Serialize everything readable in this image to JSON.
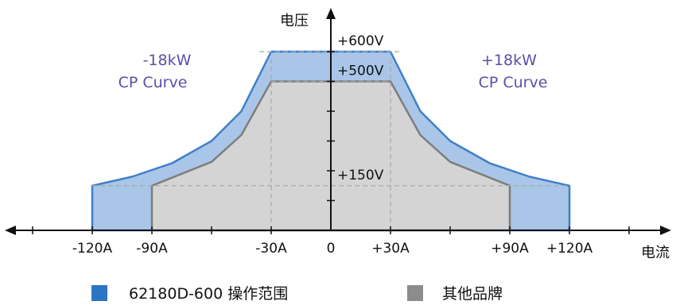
{
  "chart_data": {
    "type": "area",
    "xlabel": "电流",
    "ylabel": "电压",
    "x_ticks": [
      "-120A",
      "-90A",
      "-30A",
      "0",
      "+30A",
      "+90A",
      "+120A"
    ],
    "x_tick_values": [
      -120,
      -90,
      -30,
      0,
      30,
      90,
      120
    ],
    "y_ticks": [
      "+150V",
      "+500V",
      "+600V"
    ],
    "y_tick_values": [
      150,
      500,
      600
    ],
    "xlim": [
      -160,
      160
    ],
    "ylim": [
      0,
      700
    ],
    "annotations": [
      {
        "text_lines": [
          "-18kW",
          "CP Curve"
        ],
        "side": "left"
      },
      {
        "text_lines": [
          "+18kW",
          "CP Curve"
        ],
        "side": "right"
      }
    ],
    "series": [
      {
        "name": "62180D-600 操作范围",
        "color": "#a9c6e8",
        "stroke": "#3f7fc9",
        "legend_color": "#2e74c4",
        "points": [
          [
            -120,
            0
          ],
          [
            -120,
            150
          ],
          [
            -100,
            180
          ],
          [
            -80,
            225
          ],
          [
            -60,
            300
          ],
          [
            -45,
            400
          ],
          [
            -30,
            600
          ],
          [
            30,
            600
          ],
          [
            45,
            400
          ],
          [
            60,
            300
          ],
          [
            80,
            225
          ],
          [
            100,
            180
          ],
          [
            120,
            150
          ],
          [
            120,
            0
          ]
        ]
      },
      {
        "name": "其他品牌",
        "color": "#d4d4d4",
        "stroke": "#7d7d7d",
        "legend_color": "#8c8c8c",
        "points": [
          [
            -90,
            0
          ],
          [
            -90,
            150
          ],
          [
            -60,
            230
          ],
          [
            -45,
            320
          ],
          [
            -30,
            500
          ],
          [
            30,
            500
          ],
          [
            45,
            320
          ],
          [
            60,
            230
          ],
          [
            90,
            150
          ],
          [
            90,
            0
          ]
        ]
      }
    ],
    "legend_position": "bottom"
  }
}
